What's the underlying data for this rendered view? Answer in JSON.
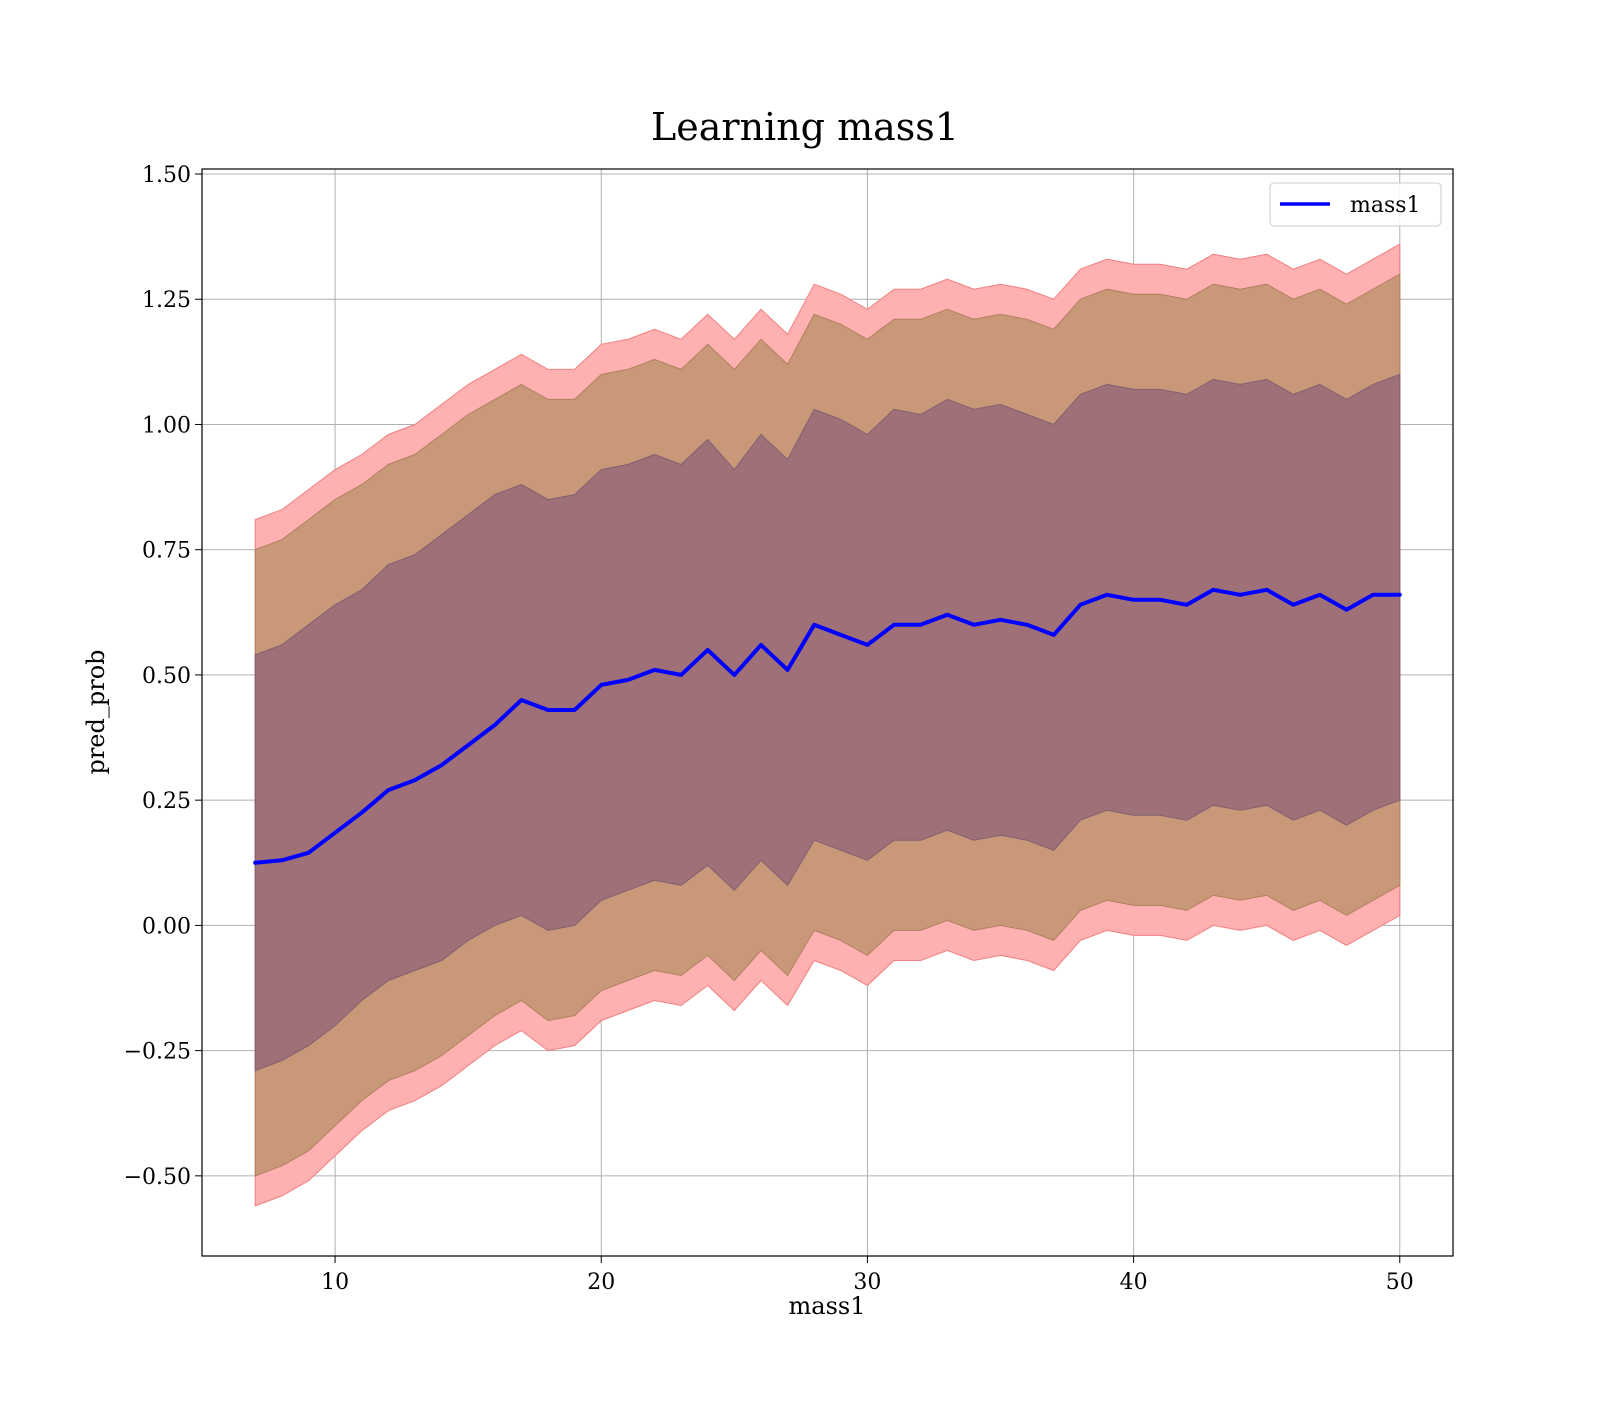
{
  "chart_data": {
    "type": "line",
    "title": "Learning mass1",
    "xlabel": "mass1",
    "ylabel": "pred_prob",
    "xlim": [
      5,
      52
    ],
    "ylim": [
      -0.66,
      1.51
    ],
    "xticks": [
      10,
      20,
      30,
      40,
      50
    ],
    "yticks": [
      -0.5,
      -0.25,
      0.0,
      0.25,
      0.5,
      0.75,
      1.0,
      1.25,
      1.5
    ],
    "xtick_labels": [
      "10",
      "20",
      "30",
      "40",
      "50"
    ],
    "ytick_labels": [
      "−0.50",
      "−0.25",
      "0.00",
      "0.25",
      "0.50",
      "0.75",
      "1.00",
      "1.25",
      "1.50"
    ],
    "grid": true,
    "legend": {
      "position": "top-right",
      "entries": [
        "mass1"
      ]
    },
    "colors": {
      "line": "#0000ff",
      "band_outer": "#ffb0b0",
      "band_middle": "#c99878",
      "band_inner": "#a07078",
      "grid": "#b0b0b0"
    },
    "series": [
      {
        "name": "mass1",
        "x": [
          7,
          8,
          9,
          10,
          11,
          12,
          13,
          14,
          15,
          16,
          17,
          18,
          19,
          20,
          21,
          22,
          23,
          24,
          25,
          26,
          27,
          28,
          29,
          30,
          31,
          32,
          33,
          34,
          35,
          36,
          37,
          38,
          39,
          40,
          41,
          42,
          43,
          44,
          45,
          46,
          47,
          48,
          49,
          50
        ],
        "y": [
          0.125,
          0.13,
          0.145,
          0.185,
          0.225,
          0.27,
          0.29,
          0.32,
          0.36,
          0.4,
          0.45,
          0.43,
          0.43,
          0.48,
          0.49,
          0.51,
          0.5,
          0.55,
          0.5,
          0.56,
          0.51,
          0.6,
          0.58,
          0.56,
          0.6,
          0.6,
          0.62,
          0.6,
          0.61,
          0.6,
          0.58,
          0.64,
          0.66,
          0.65,
          0.65,
          0.64,
          0.67,
          0.66,
          0.67,
          0.64,
          0.66,
          0.63,
          0.66,
          0.66
        ],
        "band_1std": [
          [
            -0.29,
            0.54
          ],
          [
            -0.27,
            0.56
          ],
          [
            -0.24,
            0.6
          ],
          [
            -0.2,
            0.64
          ],
          [
            -0.15,
            0.67
          ],
          [
            -0.11,
            0.72
          ],
          [
            -0.09,
            0.74
          ],
          [
            -0.07,
            0.78
          ],
          [
            -0.03,
            0.82
          ],
          [
            0.0,
            0.86
          ],
          [
            0.02,
            0.88
          ],
          [
            -0.01,
            0.85
          ],
          [
            0.0,
            0.86
          ],
          [
            0.05,
            0.91
          ],
          [
            0.07,
            0.92
          ],
          [
            0.09,
            0.94
          ],
          [
            0.08,
            0.92
          ],
          [
            0.12,
            0.97
          ],
          [
            0.07,
            0.91
          ],
          [
            0.13,
            0.98
          ],
          [
            0.08,
            0.93
          ],
          [
            0.17,
            1.03
          ],
          [
            0.15,
            1.01
          ],
          [
            0.13,
            0.98
          ],
          [
            0.17,
            1.03
          ],
          [
            0.17,
            1.02
          ],
          [
            0.19,
            1.05
          ],
          [
            0.17,
            1.03
          ],
          [
            0.18,
            1.04
          ],
          [
            0.17,
            1.02
          ],
          [
            0.15,
            1.0
          ],
          [
            0.21,
            1.06
          ],
          [
            0.23,
            1.08
          ],
          [
            0.22,
            1.07
          ],
          [
            0.22,
            1.07
          ],
          [
            0.21,
            1.06
          ],
          [
            0.24,
            1.09
          ],
          [
            0.23,
            1.08
          ],
          [
            0.24,
            1.09
          ],
          [
            0.21,
            1.06
          ],
          [
            0.23,
            1.08
          ],
          [
            0.2,
            1.05
          ],
          [
            0.23,
            1.08
          ],
          [
            0.25,
            1.1
          ]
        ],
        "band_2std": [
          [
            -0.5,
            0.75
          ],
          [
            -0.48,
            0.77
          ],
          [
            -0.45,
            0.81
          ],
          [
            -0.4,
            0.85
          ],
          [
            -0.35,
            0.88
          ],
          [
            -0.31,
            0.92
          ],
          [
            -0.29,
            0.94
          ],
          [
            -0.26,
            0.98
          ],
          [
            -0.22,
            1.02
          ],
          [
            -0.18,
            1.05
          ],
          [
            -0.15,
            1.08
          ],
          [
            -0.19,
            1.05
          ],
          [
            -0.18,
            1.05
          ],
          [
            -0.13,
            1.1
          ],
          [
            -0.11,
            1.11
          ],
          [
            -0.09,
            1.13
          ],
          [
            -0.1,
            1.11
          ],
          [
            -0.06,
            1.16
          ],
          [
            -0.11,
            1.11
          ],
          [
            -0.05,
            1.17
          ],
          [
            -0.1,
            1.12
          ],
          [
            -0.01,
            1.22
          ],
          [
            -0.03,
            1.2
          ],
          [
            -0.06,
            1.17
          ],
          [
            -0.01,
            1.21
          ],
          [
            -0.01,
            1.21
          ],
          [
            0.01,
            1.23
          ],
          [
            -0.01,
            1.21
          ],
          [
            0.0,
            1.22
          ],
          [
            -0.01,
            1.21
          ],
          [
            -0.03,
            1.19
          ],
          [
            0.03,
            1.25
          ],
          [
            0.05,
            1.27
          ],
          [
            0.04,
            1.26
          ],
          [
            0.04,
            1.26
          ],
          [
            0.03,
            1.25
          ],
          [
            0.06,
            1.28
          ],
          [
            0.05,
            1.27
          ],
          [
            0.06,
            1.28
          ],
          [
            0.03,
            1.25
          ],
          [
            0.05,
            1.27
          ],
          [
            0.02,
            1.24
          ],
          [
            0.05,
            1.27
          ],
          [
            0.08,
            1.3
          ]
        ],
        "band_3std": [
          [
            -0.56,
            0.81
          ],
          [
            -0.54,
            0.83
          ],
          [
            -0.51,
            0.87
          ],
          [
            -0.46,
            0.91
          ],
          [
            -0.41,
            0.94
          ],
          [
            -0.37,
            0.98
          ],
          [
            -0.35,
            1.0
          ],
          [
            -0.32,
            1.04
          ],
          [
            -0.28,
            1.08
          ],
          [
            -0.24,
            1.11
          ],
          [
            -0.21,
            1.14
          ],
          [
            -0.25,
            1.11
          ],
          [
            -0.24,
            1.11
          ],
          [
            -0.19,
            1.16
          ],
          [
            -0.17,
            1.17
          ],
          [
            -0.15,
            1.19
          ],
          [
            -0.16,
            1.17
          ],
          [
            -0.12,
            1.22
          ],
          [
            -0.17,
            1.17
          ],
          [
            -0.11,
            1.23
          ],
          [
            -0.16,
            1.18
          ],
          [
            -0.07,
            1.28
          ],
          [
            -0.09,
            1.26
          ],
          [
            -0.12,
            1.23
          ],
          [
            -0.07,
            1.27
          ],
          [
            -0.07,
            1.27
          ],
          [
            -0.05,
            1.29
          ],
          [
            -0.07,
            1.27
          ],
          [
            -0.06,
            1.28
          ],
          [
            -0.07,
            1.27
          ],
          [
            -0.09,
            1.25
          ],
          [
            -0.03,
            1.31
          ],
          [
            -0.01,
            1.33
          ],
          [
            -0.02,
            1.32
          ],
          [
            -0.02,
            1.32
          ],
          [
            -0.03,
            1.31
          ],
          [
            0.0,
            1.34
          ],
          [
            -0.01,
            1.33
          ],
          [
            0.0,
            1.34
          ],
          [
            -0.03,
            1.31
          ],
          [
            -0.01,
            1.33
          ],
          [
            -0.04,
            1.3
          ],
          [
            -0.01,
            1.33
          ],
          [
            0.02,
            1.36
          ]
        ]
      }
    ]
  }
}
